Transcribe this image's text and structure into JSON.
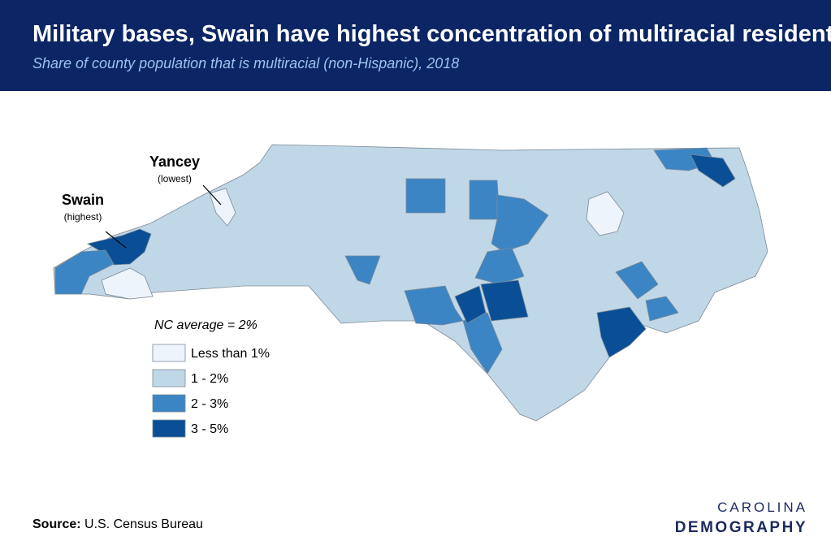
{
  "header": {
    "title": "Military bases, Swain have highest concentration of multiracial residents",
    "subtitle": "Share of county population that is multiracial (non-Hispanic), 2018"
  },
  "annotations": [
    {
      "name": "Yancey",
      "note": "(lowest)"
    },
    {
      "name": "Swain",
      "note": "(highest)"
    }
  ],
  "legend": {
    "title": "NC average = 2%",
    "items": [
      {
        "label": "Less than 1%",
        "color": "#eef4fc"
      },
      {
        "label": "1 - 2%",
        "color": "#c0d7e8"
      },
      {
        "label": "2 - 3%",
        "color": "#3c85c4"
      },
      {
        "label": "3 - 5%",
        "color": "#0a4f96"
      }
    ]
  },
  "source": {
    "label": "Source:",
    "text": "U.S. Census Bureau"
  },
  "logo": {
    "top": "CAROLINA",
    "bottom": "DEMOGRAPHY"
  }
}
